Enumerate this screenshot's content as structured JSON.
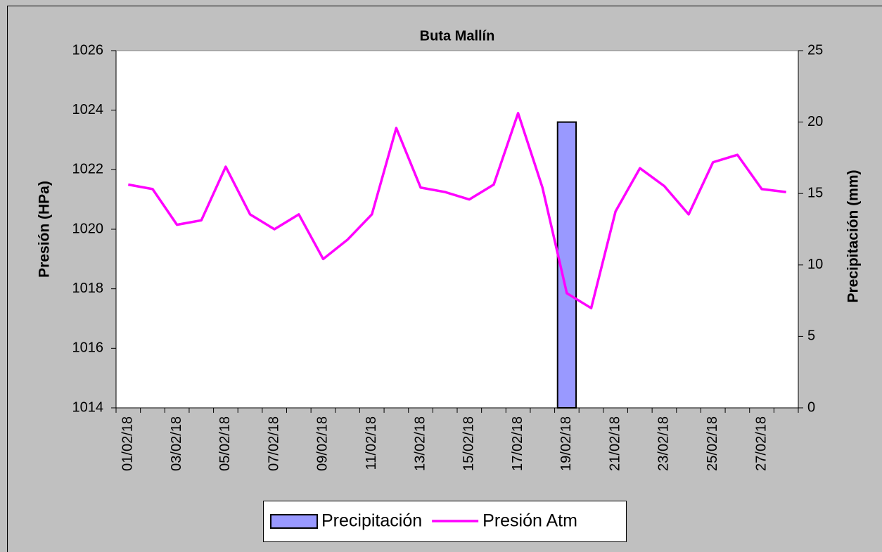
{
  "chart_data": {
    "type": "bar_line",
    "title": "Buta Mallín",
    "ylabel": "Presión (HPa)",
    "y2label": "Precipitación (mm)",
    "categories": [
      "01/02/18",
      null,
      "03/02/18",
      null,
      "05/02/18",
      null,
      "07/02/18",
      null,
      "09/02/18",
      null,
      "11/02/18",
      null,
      "13/02/18",
      null,
      "15/02/18",
      null,
      "17/02/18",
      null,
      "19/02/18",
      null,
      "21/02/18",
      null,
      "23/02/18",
      null,
      "25/02/18",
      null,
      "27/02/18",
      null
    ],
    "series": [
      {
        "name": "Precipitación",
        "type": "bar",
        "axis": "y2",
        "color": "#9999ff",
        "values": [
          0,
          0,
          0,
          0,
          0,
          0,
          0,
          0,
          0,
          0,
          0,
          0,
          0,
          0,
          0,
          0,
          0,
          0,
          20,
          0,
          0,
          0,
          0,
          0,
          0,
          0,
          0,
          0
        ]
      },
      {
        "name": "Presión Atm",
        "type": "line",
        "axis": "y",
        "color": "#ff00ff",
        "values": [
          1021.5,
          1021.35,
          1020.15,
          1020.3,
          1022.1,
          1020.5,
          1020.0,
          1020.5,
          1019.0,
          1019.65,
          1020.5,
          1023.4,
          1021.4,
          1021.25,
          1021.0,
          1021.5,
          1023.9,
          1021.4,
          1017.85,
          1017.35,
          1020.6,
          1022.05,
          1021.45,
          1020.5,
          1022.25,
          1022.5,
          1021.35,
          1021.25
        ]
      }
    ],
    "ylim": [
      1014,
      1026
    ],
    "yticks": [
      1014,
      1016,
      1018,
      1020,
      1022,
      1024,
      1026
    ],
    "y2lim": [
      0,
      25
    ],
    "y2ticks": [
      0,
      5,
      10,
      15,
      20,
      25
    ],
    "grid": false,
    "legend": "bottom"
  }
}
